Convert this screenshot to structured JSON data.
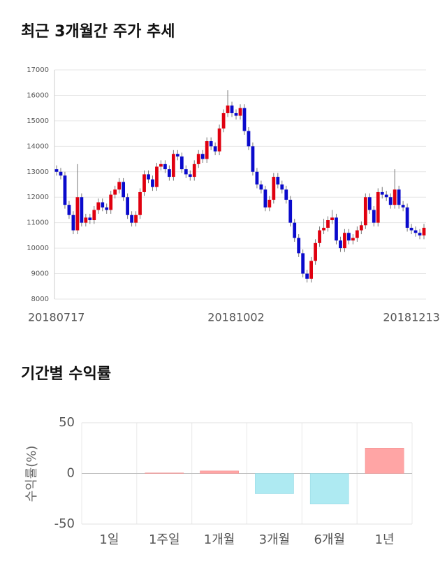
{
  "chart_data": [
    {
      "type": "candlestick",
      "title": "최근 3개월간 주가 추세",
      "categories": [
        "20180717",
        null,
        null,
        null,
        null,
        null,
        null,
        null,
        null,
        null,
        null,
        null,
        null,
        null,
        null,
        null,
        null,
        null,
        null,
        null,
        null,
        null,
        null,
        null,
        null,
        null,
        null,
        null,
        null,
        null,
        null,
        null,
        null,
        null,
        null,
        null,
        null,
        null,
        null,
        null,
        null,
        null,
        null,
        "20181002",
        null,
        null,
        null,
        null,
        null,
        null,
        null,
        null,
        null,
        null,
        null,
        null,
        null,
        null,
        null,
        null,
        null,
        null,
        null,
        null,
        null,
        null,
        null,
        null,
        null,
        null,
        null,
        null,
        null,
        null,
        null,
        null,
        null,
        null,
        null,
        null,
        null,
        null,
        null,
        null,
        null,
        "20181213",
        null,
        null,
        null
      ],
      "open": [
        13100,
        13000,
        12850,
        11700,
        11300,
        10700,
        12000,
        11000,
        11200,
        11100,
        11500,
        11800,
        11600,
        11500,
        12100,
        12300,
        12600,
        12000,
        11300,
        11000,
        11300,
        12200,
        12900,
        12700,
        12400,
        13200,
        13300,
        13100,
        12800,
        13700,
        13600,
        13100,
        12900,
        12800,
        13300,
        13700,
        13500,
        14200,
        14000,
        13800,
        14700,
        15300,
        15600,
        15300,
        15200,
        15500,
        14600,
        14000,
        13000,
        12500,
        12300,
        11600,
        11900,
        12800,
        12500,
        12300,
        11900,
        11000,
        10400,
        9800,
        9000,
        8800,
        9500,
        10200,
        10700,
        10800,
        11100,
        11200,
        10300,
        10000,
        10600,
        10300,
        10400,
        10700,
        10900,
        12000,
        11500,
        11000,
        12200,
        12100,
        12000,
        11700,
        12300,
        11700,
        11600,
        10800,
        10700,
        10600,
        10500
      ],
      "high": [
        13250,
        13150,
        13000,
        11850,
        11450,
        13300,
        12150,
        11350,
        11350,
        11650,
        11950,
        11950,
        11750,
        12250,
        12450,
        12750,
        12750,
        12150,
        11450,
        11450,
        12350,
        13050,
        13050,
        12850,
        13350,
        13450,
        13450,
        13250,
        13850,
        13850,
        13750,
        13250,
        13050,
        13450,
        13850,
        13850,
        14350,
        14350,
        14150,
        14850,
        15450,
        16200,
        15750,
        15450,
        15650,
        15650,
        14750,
        14150,
        13150,
        12650,
        12450,
        12050,
        12950,
        12950,
        12650,
        12450,
        12050,
        11150,
        10550,
        9950,
        9150,
        9650,
        10350,
        10850,
        11150,
        11250,
        11500,
        11350,
        10450,
        10750,
        10750,
        10550,
        10850,
        11050,
        12150,
        12150,
        11650,
        12350,
        12400,
        12250,
        12150,
        13100,
        12450,
        11850,
        11750,
        10950,
        10850,
        10750,
        10950
      ],
      "low": [
        12850,
        12700,
        11550,
        11150,
        10550,
        10550,
        10850,
        10850,
        10950,
        10950,
        11350,
        11450,
        11350,
        11350,
        11950,
        12150,
        11850,
        11150,
        10850,
        10850,
        11150,
        12050,
        12550,
        12250,
        12250,
        13050,
        12950,
        12650,
        12650,
        13450,
        12950,
        12750,
        12650,
        12650,
        13150,
        13350,
        13350,
        13850,
        13650,
        13650,
        14550,
        15150,
        15150,
        15050,
        15050,
        14450,
        13850,
        12850,
        12350,
        12150,
        11450,
        11450,
        11750,
        12350,
        12150,
        11750,
        10850,
        10250,
        9650,
        8850,
        8650,
        8650,
        9350,
        10050,
        10550,
        10650,
        10950,
        10150,
        9850,
        9850,
        10150,
        10150,
        10250,
        10550,
        10750,
        11350,
        10850,
        10850,
        11950,
        11850,
        11550,
        11550,
        11550,
        11450,
        10650,
        10550,
        10450,
        10350,
        10350
      ],
      "close": [
        13000,
        12850,
        11700,
        11300,
        10700,
        12000,
        11000,
        11200,
        11100,
        11500,
        11800,
        11600,
        11500,
        12100,
        12300,
        12600,
        12000,
        11300,
        11000,
        11300,
        12200,
        12900,
        12700,
        12400,
        13200,
        13300,
        13100,
        12800,
        13700,
        13600,
        13100,
        12900,
        12800,
        13300,
        13700,
        13500,
        14200,
        14000,
        13800,
        14700,
        15300,
        15600,
        15300,
        15200,
        15500,
        14600,
        14000,
        13000,
        12500,
        12300,
        11600,
        11900,
        12800,
        12500,
        12300,
        11900,
        11000,
        10400,
        9800,
        9000,
        8800,
        9500,
        10200,
        10700,
        10800,
        11100,
        11200,
        10300,
        10000,
        10600,
        10300,
        10400,
        10700,
        10900,
        12000,
        11500,
        11000,
        12200,
        12100,
        12000,
        11700,
        12300,
        11700,
        11600,
        10800,
        10700,
        10600,
        10500,
        10800
      ],
      "up_color": "#e0000f",
      "down_color": "#0a0acc",
      "ylim": [
        8000,
        17000
      ],
      "yticks": [
        8000,
        9000,
        10000,
        11000,
        12000,
        13000,
        14000,
        15000,
        16000,
        17000
      ],
      "grid": true
    },
    {
      "type": "bar",
      "title": "기간별 수익률",
      "y_label": "수익률(%)",
      "categories": [
        "1일",
        "1주일",
        "1개월",
        "3개월",
        "6개월",
        "1년"
      ],
      "values": [
        0,
        0.5,
        2.5,
        -20,
        -30,
        25
      ],
      "positive_color": "#ffa5a5",
      "negative_color": "#aeeaf2",
      "ylim": [
        -50,
        50
      ],
      "yticks": [
        -50,
        0,
        50
      ],
      "grid": true
    }
  ]
}
